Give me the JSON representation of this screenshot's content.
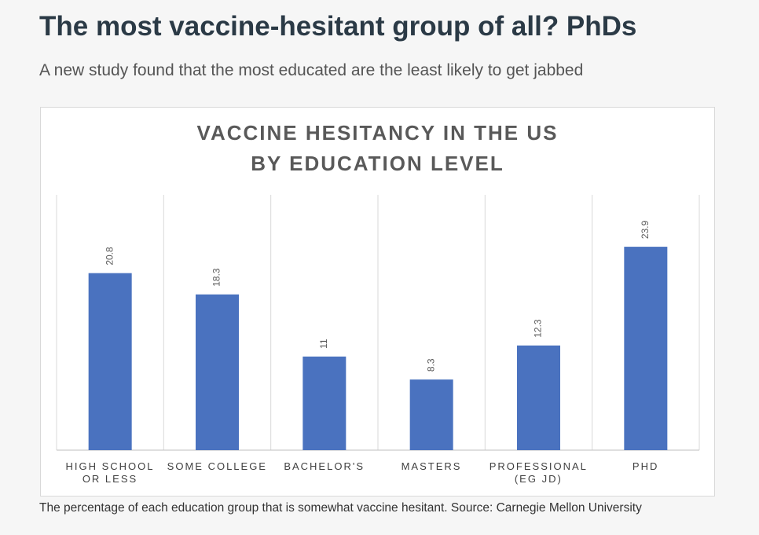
{
  "headline": "The most vaccine-hesitant group of all? PhDs",
  "subtitle": "A new study found that the most educated are the least likely to get jabbed",
  "caption": "The percentage of each education group that is somewhat vaccine hesitant. Source: Carnegie Mellon University",
  "chart_data": {
    "type": "bar",
    "title": "VACCINE HESITANCY IN THE US\nBY EDUCATION LEVEL",
    "categories": [
      "HIGH SCHOOL\nOR LESS",
      "SOME COLLEGE",
      "BACHELOR'S",
      "MASTERS",
      "PROFESSIONAL\n(EG JD)",
      "PHD"
    ],
    "values": [
      20.8,
      18.3,
      11,
      8.3,
      12.3,
      23.9
    ],
    "color": "#4a72bf",
    "ylim": [
      0,
      30
    ]
  }
}
